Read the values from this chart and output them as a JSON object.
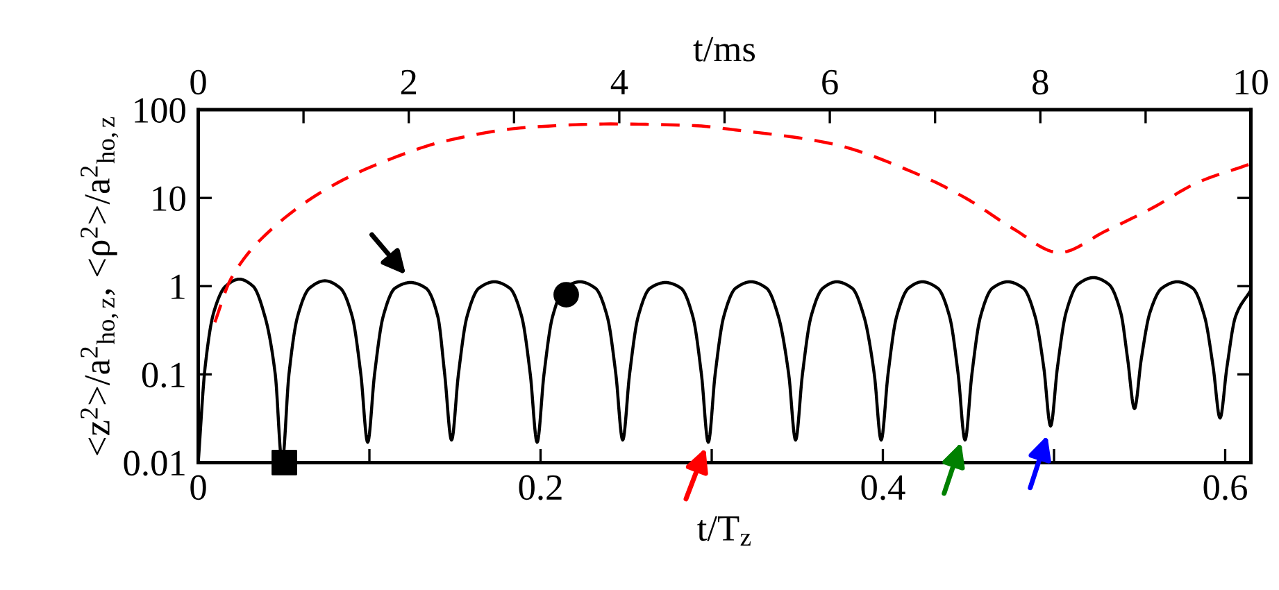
{
  "chart_data": {
    "type": "line",
    "xlabel": "t/T$_{z}$",
    "ylabel": "<z$^{2}$>/a$^{2}$$_{ho,z}$, <ρ$^{2}$>/a$^{2}$$_{ho,z}$",
    "x2label": "t/ms",
    "log": "y",
    "grid": false,
    "xlim": [
      0,
      0.615
    ],
    "xticks": [
      0,
      {
        "value": 0.1,
        "label": null
      },
      0.2,
      {
        "value": 0.3,
        "label": null
      },
      0.4,
      {
        "value": 0.5,
        "label": null
      },
      0.6
    ],
    "x2lim": [
      0,
      10
    ],
    "x2ticks": [
      0,
      {
        "value": 1,
        "label": null
      },
      2,
      {
        "value": 3,
        "label": null
      },
      4,
      {
        "value": 5,
        "label": null
      },
      6,
      {
        "value": 7,
        "label": null
      },
      8,
      {
        "value": 9,
        "label": null
      },
      10
    ],
    "ylim": [
      0.01,
      100
    ],
    "yticks": [
      0.01,
      0.1,
      1,
      10,
      100
    ],
    "series": [
      {
        "color": "#000000",
        "line_style": "solid",
        "marker": "none",
        "x": [
          0,
          0.004,
          0.009,
          0.016,
          0.024,
          0.032,
          0.039,
          0.045,
          0.049,
          0.053,
          0.058,
          0.065,
          0.074,
          0.083,
          0.09,
          0.095,
          0.099,
          0.103,
          0.108,
          0.115,
          0.124,
          0.133,
          0.14,
          0.144,
          0.148,
          0.152,
          0.157,
          0.164,
          0.173,
          0.182,
          0.189,
          0.194,
          0.198,
          0.202,
          0.207,
          0.214,
          0.223,
          0.232,
          0.239,
          0.244,
          0.248,
          0.252,
          0.257,
          0.264,
          0.273,
          0.282,
          0.289,
          0.294,
          0.298,
          0.302,
          0.307,
          0.314,
          0.323,
          0.332,
          0.339,
          0.345,
          0.349,
          0.353,
          0.358,
          0.365,
          0.373,
          0.382,
          0.389,
          0.395,
          0.399,
          0.403,
          0.408,
          0.415,
          0.423,
          0.432,
          0.439,
          0.444,
          0.448,
          0.452,
          0.457,
          0.464,
          0.473,
          0.482,
          0.489,
          0.494,
          0.498,
          0.502,
          0.507,
          0.514,
          0.523,
          0.532,
          0.539,
          0.543,
          0.547,
          0.551,
          0.556,
          0.563,
          0.572,
          0.581,
          0.588,
          0.593,
          0.597,
          0.601,
          0.606,
          0.615
        ],
        "values": [
          0.01,
          0.12,
          0.5,
          1.0,
          1.2,
          1.0,
          0.45,
          0.1,
          0.01,
          0.1,
          0.45,
          0.95,
          1.15,
          0.95,
          0.45,
          0.1,
          0.017,
          0.1,
          0.45,
          0.95,
          1.1,
          0.95,
          0.45,
          0.1,
          0.018,
          0.1,
          0.45,
          0.95,
          1.12,
          0.95,
          0.45,
          0.1,
          0.017,
          0.1,
          0.45,
          0.95,
          1.12,
          0.95,
          0.45,
          0.1,
          0.018,
          0.1,
          0.45,
          0.95,
          1.1,
          0.95,
          0.45,
          0.1,
          0.017,
          0.1,
          0.45,
          0.95,
          1.12,
          0.95,
          0.45,
          0.1,
          0.018,
          0.1,
          0.45,
          0.95,
          1.12,
          0.95,
          0.45,
          0.1,
          0.018,
          0.1,
          0.45,
          0.95,
          1.12,
          0.95,
          0.45,
          0.1,
          0.018,
          0.1,
          0.45,
          0.95,
          1.12,
          0.95,
          0.45,
          0.12,
          0.026,
          0.12,
          0.5,
          1.05,
          1.25,
          1.05,
          0.5,
          0.15,
          0.041,
          0.15,
          0.5,
          0.95,
          1.12,
          0.95,
          0.45,
          0.12,
          0.032,
          0.12,
          0.45,
          0.9
        ]
      },
      {
        "color": "#ff0000",
        "line_style": "dashed",
        "marker": "none",
        "x": [
          0.0097,
          0.019,
          0.041,
          0.079,
          0.111,
          0.144,
          0.192,
          0.241,
          0.29,
          0.314,
          0.368,
          0.422,
          0.449,
          0.476,
          0.503,
          0.53,
          0.557,
          0.584,
          0.614
        ],
        "values": [
          0.39,
          1.2,
          4.1,
          14,
          27,
          44,
          63,
          69,
          66,
          59,
          42,
          18,
          9.8,
          4.5,
          2.4,
          4.2,
          7.6,
          15,
          24
        ]
      },
      {
        "type": "scatter",
        "color": "#000000",
        "marker": "square",
        "x": [
          0.0503
        ],
        "values": [
          0.01
        ]
      },
      {
        "type": "scatter",
        "color": "#000000",
        "marker": "circle",
        "x": [
          0.215
        ],
        "values": [
          0.8
        ]
      }
    ]
  }
}
